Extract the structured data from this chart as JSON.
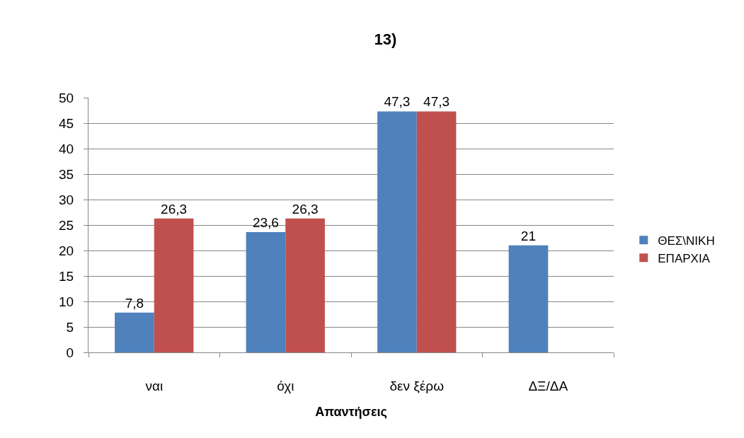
{
  "chart_data": {
    "type": "bar",
    "title": "13)",
    "xlabel": "Απαντήσεις",
    "categories": [
      "ναι",
      "όχι",
      "δεν ξέρω",
      "ΔΞ/ΔΑ"
    ],
    "series": [
      {
        "name": "ΘΕΣ\\ΝΙΚΗ",
        "color": "#4f81bd",
        "values": [
          7.8,
          23.6,
          47.3,
          21
        ],
        "value_labels": [
          "7,8",
          "23,6",
          "47,3",
          "21"
        ]
      },
      {
        "name": "ΕΠΑΡΧΙΑ",
        "color": "#c0504d",
        "values": [
          26.3,
          26.3,
          47.3,
          null
        ],
        "value_labels": [
          "26,3",
          "26,3",
          "47,3",
          null
        ]
      }
    ],
    "ylim": [
      0,
      50
    ],
    "yticks": [
      0,
      5,
      10,
      15,
      20,
      25,
      30,
      35,
      40,
      45,
      50
    ],
    "grid": "y",
    "legend": "right"
  }
}
